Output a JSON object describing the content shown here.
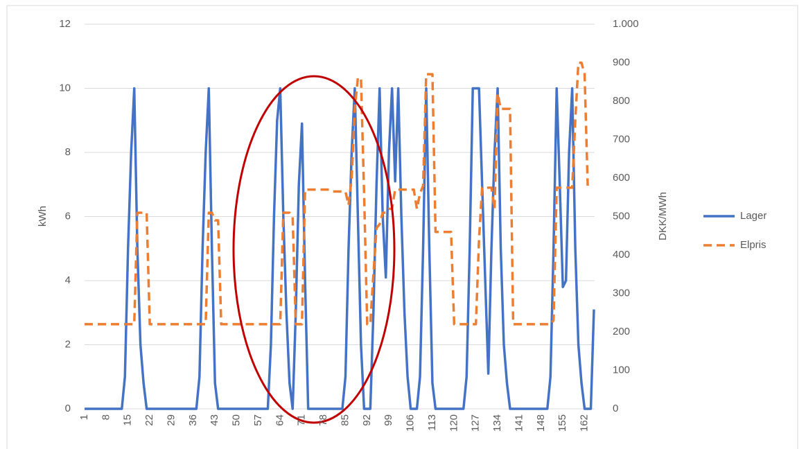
{
  "chart_data": {
    "type": "line",
    "y_label": "kWh",
    "y2_label": "DKK/MWh",
    "x": [
      1,
      2,
      3,
      4,
      5,
      6,
      7,
      8,
      9,
      10,
      11,
      12,
      13,
      14,
      15,
      16,
      17,
      18,
      19,
      20,
      21,
      22,
      23,
      24,
      25,
      26,
      27,
      28,
      29,
      30,
      31,
      32,
      33,
      34,
      35,
      36,
      37,
      38,
      39,
      40,
      41,
      42,
      43,
      44,
      45,
      46,
      47,
      48,
      49,
      50,
      51,
      52,
      53,
      54,
      55,
      56,
      57,
      58,
      59,
      60,
      61,
      62,
      63,
      64,
      65,
      66,
      67,
      68,
      69,
      70,
      71,
      72,
      73,
      74,
      75,
      76,
      77,
      78,
      79,
      80,
      81,
      82,
      83,
      84,
      85,
      86,
      87,
      88,
      89,
      90,
      91,
      92,
      93,
      94,
      95,
      96,
      97,
      98,
      99,
      100,
      101,
      102,
      103,
      104,
      105,
      106,
      107,
      108,
      109,
      110,
      111,
      112,
      113,
      114,
      115,
      116,
      117,
      118,
      119,
      120,
      121,
      122,
      123,
      124,
      125,
      126,
      127,
      128,
      129,
      130,
      131,
      132,
      133,
      134,
      135,
      136,
      137,
      138,
      139,
      140,
      141,
      142,
      143,
      144,
      145,
      146,
      147,
      148,
      149,
      150,
      151,
      152,
      153,
      154,
      155,
      156,
      157,
      158,
      159,
      160,
      161,
      162,
      163,
      164,
      165
    ],
    "xlim": [
      1,
      165
    ],
    "xticks": [
      1,
      8,
      15,
      22,
      29,
      36,
      43,
      50,
      57,
      64,
      71,
      78,
      85,
      92,
      99,
      106,
      113,
      120,
      127,
      134,
      141,
      148,
      155,
      162
    ],
    "ylim": [
      0,
      12
    ],
    "yticks": [
      0,
      2,
      4,
      6,
      8,
      10,
      12
    ],
    "y2lim": [
      0,
      1000
    ],
    "y2ticks": [
      0,
      100,
      200,
      300,
      400,
      500,
      600,
      700,
      800,
      900,
      {
        "value": 1000,
        "label": "1.000"
      }
    ],
    "grid": true,
    "legend": "right",
    "series": [
      {
        "name": "Lager",
        "color": "#4472c4",
        "style": "solid",
        "values": [
          0,
          0,
          0,
          0,
          0,
          0,
          0,
          0,
          0,
          0,
          0,
          0,
          0,
          1,
          5,
          8,
          10,
          5,
          2,
          0.8,
          0,
          0,
          0,
          0,
          0,
          0,
          0,
          0,
          0,
          0,
          0,
          0,
          0,
          0,
          0,
          0,
          0,
          1,
          5,
          8,
          10,
          5,
          0.8,
          0,
          0,
          0,
          0,
          0,
          0,
          0,
          0,
          0,
          0,
          0,
          0,
          0,
          0,
          0,
          0,
          0,
          2,
          6,
          9,
          10,
          6,
          3,
          0.8,
          0,
          3,
          7,
          8.9,
          4,
          0,
          0,
          0,
          0,
          0,
          0,
          0,
          0,
          0,
          0,
          0,
          0,
          1,
          5,
          8,
          10,
          6,
          2,
          0,
          0,
          0,
          3,
          7,
          10,
          6,
          4.1,
          8,
          10,
          7.1,
          10,
          6,
          3,
          1,
          0,
          0,
          0,
          1,
          5,
          10,
          5,
          0.8,
          0,
          0,
          0,
          0,
          0,
          0,
          0,
          0,
          0,
          0,
          1,
          5,
          10,
          10,
          10,
          7,
          4,
          1.1,
          5,
          8,
          10,
          5,
          2,
          0.8,
          0,
          0,
          0,
          0,
          0,
          0,
          0,
          0,
          0,
          0,
          0,
          0,
          0,
          1,
          5,
          10,
          7,
          3.8,
          4,
          8,
          10,
          5,
          2,
          0.8,
          0,
          0,
          0,
          3.1
        ]
      },
      {
        "name": "Elpris",
        "color": "#ed7d31",
        "style": "dashed",
        "axis": "y2",
        "values": [
          220,
          220,
          220,
          220,
          220,
          220,
          220,
          220,
          220,
          220,
          220,
          220,
          220,
          220,
          220,
          220,
          220,
          510,
          510,
          510,
          510,
          220,
          220,
          220,
          220,
          220,
          220,
          220,
          220,
          220,
          220,
          220,
          220,
          220,
          220,
          220,
          220,
          220,
          220,
          220,
          510,
          510,
          490,
          490,
          220,
          220,
          220,
          220,
          220,
          220,
          220,
          220,
          220,
          220,
          220,
          220,
          220,
          220,
          220,
          220,
          220,
          220,
          220,
          220,
          510,
          510,
          510,
          500,
          220,
          220,
          220,
          570,
          570,
          570,
          570,
          570,
          570,
          570,
          570,
          570,
          565,
          565,
          565,
          565,
          565,
          530,
          600,
          780,
          860,
          860,
          560,
          220,
          220,
          350,
          470,
          480,
          510,
          510,
          520,
          520,
          570,
          570,
          570,
          570,
          570,
          570,
          570,
          520,
          560,
          580,
          870,
          870,
          870,
          460,
          460,
          460,
          460,
          460,
          460,
          220,
          220,
          220,
          220,
          220,
          220,
          220,
          220,
          440,
          575,
          575,
          575,
          575,
          520,
          820,
          780,
          780,
          780,
          780,
          220,
          220,
          220,
          220,
          220,
          220,
          220,
          220,
          220,
          220,
          220,
          220,
          220,
          230,
          575,
          575,
          575,
          575,
          575,
          575,
          750,
          900,
          900,
          870,
          580,
          null,
          null
        ]
      }
    ]
  }
}
